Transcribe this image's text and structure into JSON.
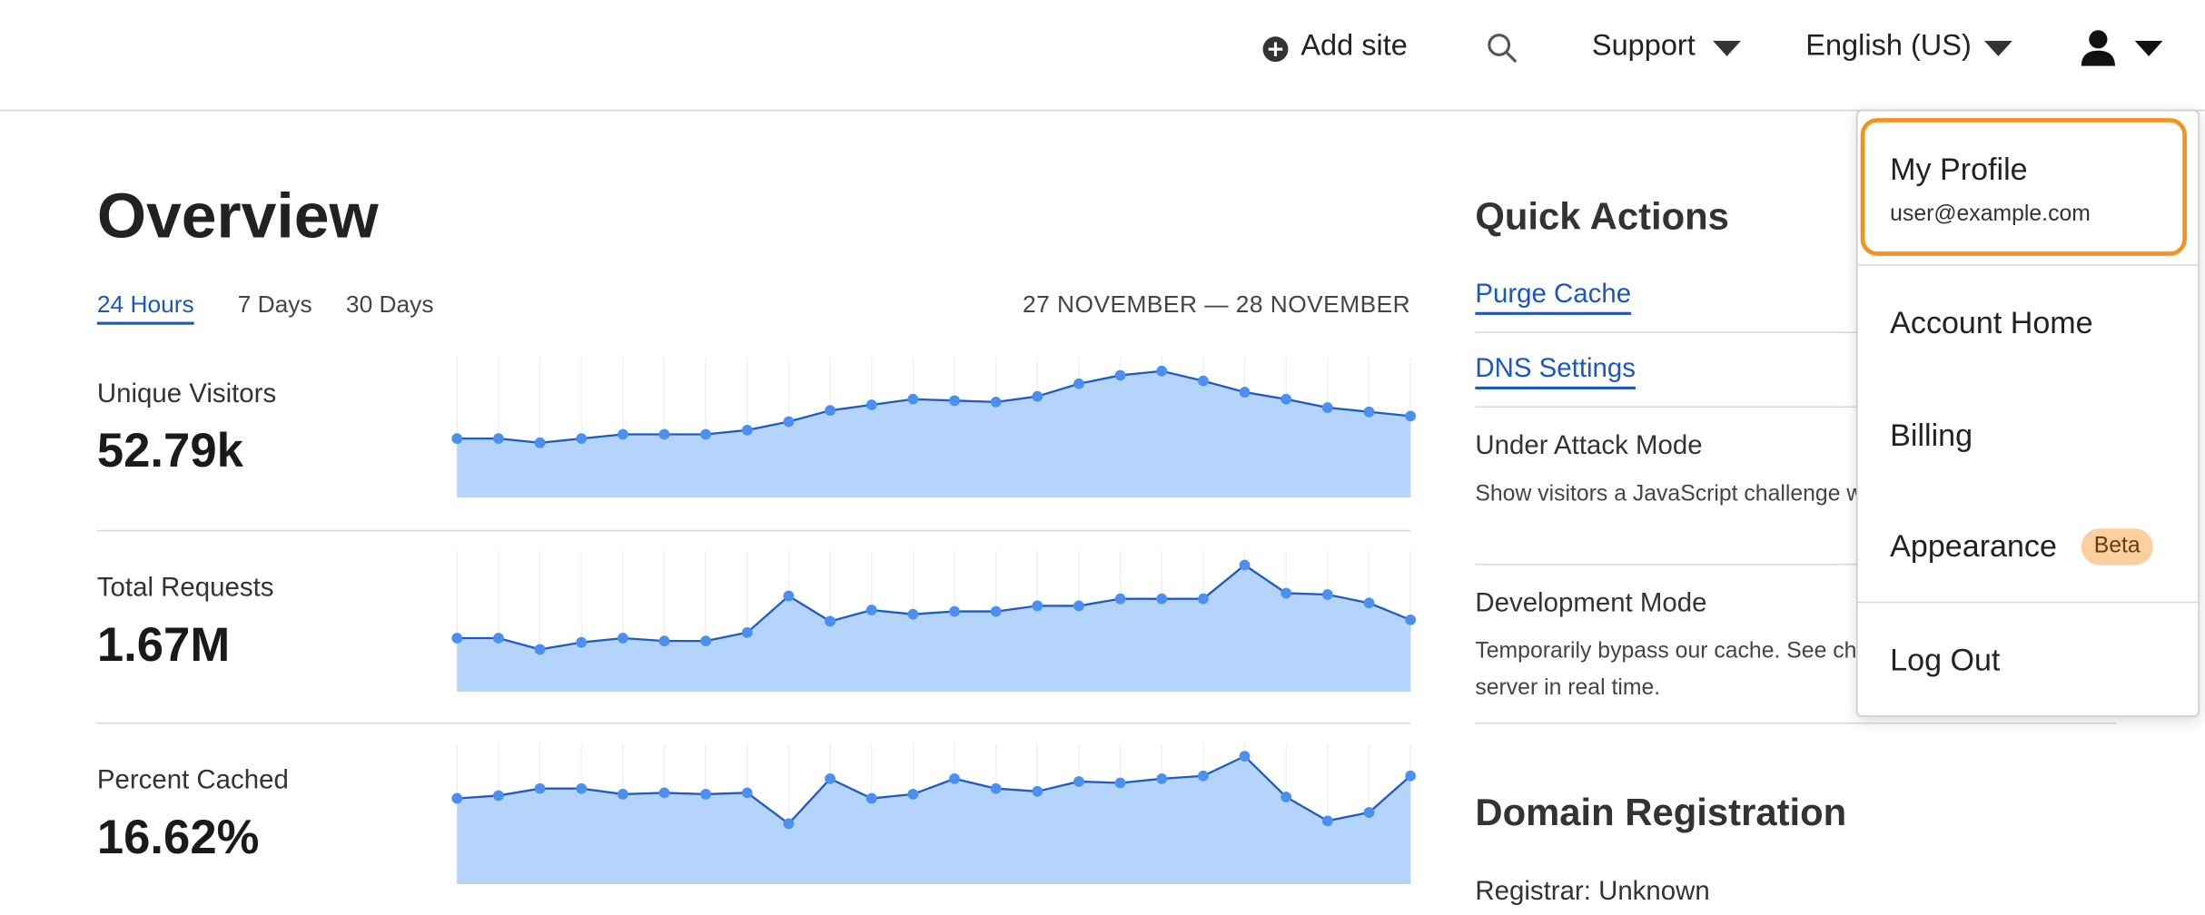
{
  "header": {
    "add_site": "Add site",
    "support": "Support",
    "language": "English (US)"
  },
  "overview": {
    "title": "Overview",
    "tabs": [
      "24 Hours",
      "7 Days",
      "30 Days"
    ],
    "date_range": "27 NOVEMBER — 28 NOVEMBER",
    "metrics": [
      {
        "label": "Unique Visitors",
        "value": "52.79k",
        "sparkline": {
          "ylim": [
            0,
            100
          ],
          "values": [
            42,
            42,
            39,
            42,
            45,
            45,
            45,
            48,
            54,
            62,
            66,
            70,
            69,
            68,
            72,
            81,
            87,
            90,
            83,
            75,
            70,
            64,
            61,
            58
          ]
        }
      },
      {
        "label": "Total Requests",
        "value": "1.67M",
        "sparkline": {
          "ylim": [
            0,
            100
          ],
          "values": [
            38,
            38,
            30,
            35,
            38,
            36,
            36,
            42,
            68,
            50,
            58,
            55,
            57,
            57,
            61,
            61,
            66,
            66,
            66,
            90,
            70,
            69,
            63,
            51
          ]
        }
      },
      {
        "label": "Percent Cached",
        "value": "16.62%",
        "sparkline": {
          "ylim": [
            0,
            100
          ],
          "values": [
            61,
            63,
            68,
            68,
            64,
            65,
            64,
            65,
            43,
            75,
            61,
            64,
            75,
            68,
            66,
            73,
            72,
            75,
            77,
            91,
            62,
            45,
            51,
            77
          ]
        }
      }
    ]
  },
  "quick_actions": {
    "title": "Quick Actions",
    "links": [
      "Purge Cache",
      "DNS Settings"
    ],
    "items": [
      {
        "title": "Under Attack Mode",
        "description": "Show visitors a JavaScript challenge when they visit your site."
      },
      {
        "title": "Development Mode",
        "description": "Temporarily bypass our cache. See changes to your origin server in real time."
      }
    ]
  },
  "domain_registration": {
    "title": "Domain Registration",
    "registrar": "Registrar: Unknown"
  },
  "dropdown": {
    "profile": {
      "name": "My Profile",
      "email": "user@example.com"
    },
    "items": [
      "Account Home",
      "Billing",
      "Appearance"
    ],
    "badge": "Beta",
    "logout": "Log Out"
  }
}
